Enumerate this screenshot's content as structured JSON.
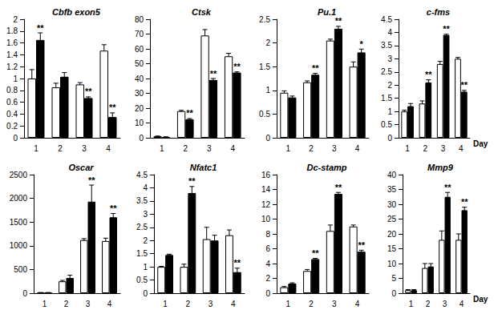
{
  "chart_data": [
    {
      "type": "bar",
      "title": "Cbfb exon5",
      "categories": [
        "1",
        "2",
        "3",
        "4"
      ],
      "series": [
        {
          "color": "#ffffff",
          "values": [
            1.0,
            0.85,
            0.9,
            1.47
          ],
          "errors": [
            0.15,
            0.07,
            0.03,
            0.1
          ]
        },
        {
          "color": "#000000",
          "values": [
            1.65,
            1.03,
            0.67,
            0.35
          ],
          "errors": [
            0.12,
            0.07,
            0.02,
            0.07
          ]
        }
      ],
      "annotations": [
        "**",
        null,
        "**",
        "**"
      ],
      "ylim": [
        0,
        2
      ],
      "yticks": [
        0,
        0.2,
        0.4,
        0.6,
        0.8,
        1,
        1.2,
        1.4,
        1.6,
        1.8,
        2
      ],
      "grid": false
    },
    {
      "type": "bar",
      "title": "Ctsk",
      "categories": [
        "1",
        "2",
        "3",
        "4"
      ],
      "series": [
        {
          "color": "#ffffff",
          "values": [
            1,
            18,
            69,
            55
          ],
          "errors": [
            0.2,
            0.5,
            4,
            2
          ]
        },
        {
          "color": "#000000",
          "values": [
            0.5,
            12.5,
            39,
            44
          ],
          "errors": [
            0.2,
            0.5,
            1,
            0.5
          ]
        }
      ],
      "annotations": [
        null,
        "**",
        "**",
        "**"
      ],
      "ylim": [
        0,
        80
      ],
      "yticks": [
        0,
        10,
        20,
        30,
        40,
        50,
        60,
        70,
        80
      ],
      "grid": false
    },
    {
      "type": "bar",
      "title": "Pu.1",
      "categories": [
        "1",
        "2",
        "3",
        "4"
      ],
      "series": [
        {
          "color": "#ffffff",
          "values": [
            0.95,
            1.17,
            2.05,
            1.5
          ],
          "errors": [
            0.04,
            0.03,
            0.03,
            0.1
          ]
        },
        {
          "color": "#000000",
          "values": [
            0.85,
            1.33,
            2.3,
            1.8
          ],
          "errors": [
            0.03,
            0.03,
            0.05,
            0.07
          ]
        }
      ],
      "annotations": [
        null,
        "**",
        "**",
        "*"
      ],
      "ylim": [
        0,
        2.5
      ],
      "yticks": [
        0,
        0.5,
        1,
        1.5,
        2,
        2.5
      ],
      "grid": false
    },
    {
      "type": "bar",
      "title": "c-fms",
      "categories": [
        "1",
        "2",
        "3",
        "4"
      ],
      "x_label": "Day",
      "series": [
        {
          "color": "#ffffff",
          "values": [
            1.0,
            1.3,
            2.8,
            3.0
          ],
          "errors": [
            0.05,
            0.1,
            0.1,
            0.05
          ]
        },
        {
          "color": "#000000",
          "values": [
            1.2,
            2.1,
            3.9,
            1.75
          ],
          "errors": [
            0.1,
            0.1,
            0.03,
            0.05
          ]
        }
      ],
      "annotations": [
        null,
        "**",
        "**",
        "**"
      ],
      "ylim": [
        0,
        4.5
      ],
      "yticks": [
        0,
        0.5,
        1,
        1.5,
        2,
        2.5,
        3,
        3.5,
        4,
        4.5
      ],
      "grid": false
    },
    {
      "type": "bar",
      "title": "Oscar",
      "categories": [
        "1",
        "2",
        "3",
        "4"
      ],
      "series": [
        {
          "color": "#ffffff",
          "values": [
            10,
            250,
            1120,
            1100
          ],
          "errors": [
            5,
            20,
            30,
            60
          ]
        },
        {
          "color": "#000000",
          "values": [
            10,
            320,
            1930,
            1600
          ],
          "errors": [
            5,
            60,
            350,
            80
          ]
        }
      ],
      "annotations": [
        null,
        null,
        "**",
        "**"
      ],
      "ylim": [
        0,
        2500
      ],
      "yticks": [
        0,
        500,
        1000,
        1500,
        2000,
        2500
      ],
      "grid": false
    },
    {
      "type": "bar",
      "title": "Nfatc1",
      "categories": [
        "1",
        "2",
        "3",
        "4"
      ],
      "series": [
        {
          "color": "#ffffff",
          "values": [
            1.0,
            1.0,
            2.05,
            2.2
          ],
          "errors": [
            0.02,
            0.1,
            0.45,
            0.2
          ]
        },
        {
          "color": "#000000",
          "values": [
            1.45,
            3.8,
            2.0,
            0.8
          ],
          "errors": [
            0.03,
            0.25,
            0.2,
            0.15
          ]
        }
      ],
      "annotations": [
        null,
        "**",
        null,
        "**"
      ],
      "ylim": [
        0,
        4.5
      ],
      "yticks": [
        0,
        0.5,
        1,
        1.5,
        2,
        2.5,
        3,
        3.5,
        4,
        4.5
      ],
      "grid": false
    },
    {
      "type": "bar",
      "title": "Dc-stamp",
      "categories": [
        "1",
        "2",
        "3",
        "4"
      ],
      "series": [
        {
          "color": "#ffffff",
          "values": [
            0.8,
            3.0,
            8.4,
            9.0
          ],
          "errors": [
            0.1,
            0.2,
            0.8,
            0.2
          ]
        },
        {
          "color": "#000000",
          "values": [
            1.3,
            4.6,
            13.4,
            5.6
          ],
          "errors": [
            0.1,
            0.1,
            0.2,
            0.2
          ]
        }
      ],
      "annotations": [
        null,
        "**",
        "**",
        "**"
      ],
      "ylim": [
        0,
        16
      ],
      "yticks": [
        0,
        2,
        4,
        6,
        8,
        10,
        12,
        14,
        16
      ],
      "grid": false
    },
    {
      "type": "bar",
      "title": "Mmp9",
      "categories": [
        "1",
        "2",
        "3",
        "4"
      ],
      "x_label": "Day",
      "series": [
        {
          "color": "#ffffff",
          "values": [
            1,
            8.5,
            18,
            18
          ],
          "errors": [
            0.2,
            1.5,
            3,
            2
          ]
        },
        {
          "color": "#000000",
          "values": [
            1,
            9,
            32.5,
            28
          ],
          "errors": [
            0.2,
            1,
            1.5,
            1
          ]
        }
      ],
      "annotations": [
        null,
        null,
        "**",
        "**"
      ],
      "ylim": [
        0,
        40
      ],
      "yticks": [
        0,
        5,
        10,
        15,
        20,
        25,
        30,
        35,
        40
      ],
      "grid": false
    }
  ]
}
